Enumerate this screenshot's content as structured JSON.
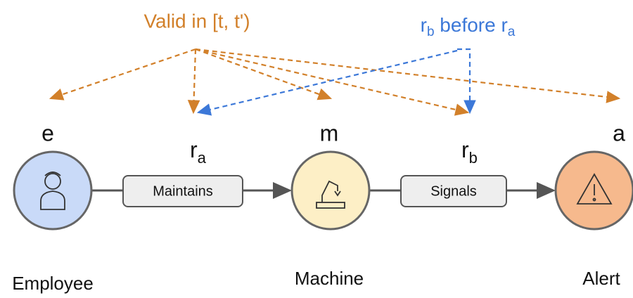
{
  "annotations": {
    "validity": "Valid in [t, t')",
    "order": [
      "r",
      "b",
      " before r",
      "a"
    ]
  },
  "nodes": [
    {
      "symbol": "e",
      "label": "Employee"
    },
    {
      "symbol": "m",
      "label": "Machine"
    },
    {
      "symbol": "a",
      "label": "Alert"
    }
  ],
  "relations": [
    {
      "symbol": "r",
      "subscript": "a",
      "label": "Maintains"
    },
    {
      "symbol": "r",
      "subscript": "b",
      "label": "Signals"
    }
  ]
}
